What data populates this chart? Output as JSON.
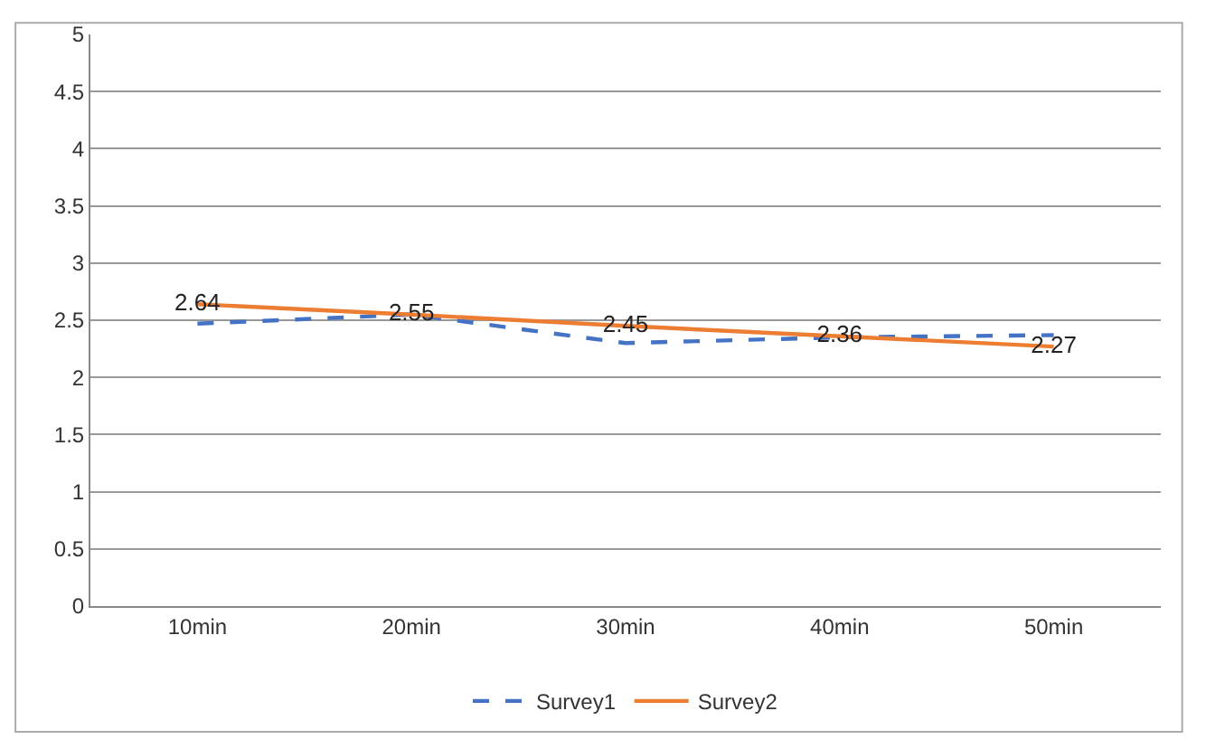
{
  "chart_data": {
    "type": "line",
    "categories": [
      "10min",
      "20min",
      "30min",
      "40min",
      "50min"
    ],
    "series": [
      {
        "name": "Survey1",
        "color": "#4472c4",
        "values": [
          2.47,
          2.55,
          2.3,
          2.35,
          2.37
        ],
        "line_style": "dashed"
      },
      {
        "name": "Survey2",
        "color": "#ed7d31",
        "values": [
          2.64,
          2.55,
          2.45,
          2.36,
          2.27
        ],
        "line_style": "solid",
        "value_labels": [
          "2.64",
          "2.55",
          "2.45",
          "2.36",
          "2.27"
        ]
      }
    ],
    "ylim": [
      0,
      5
    ],
    "yticks": [
      0,
      0.5,
      1,
      1.5,
      2,
      2.5,
      3,
      3.5,
      4,
      4.5,
      5
    ],
    "grid": "y",
    "legend": "bottom",
    "marker": "none"
  }
}
